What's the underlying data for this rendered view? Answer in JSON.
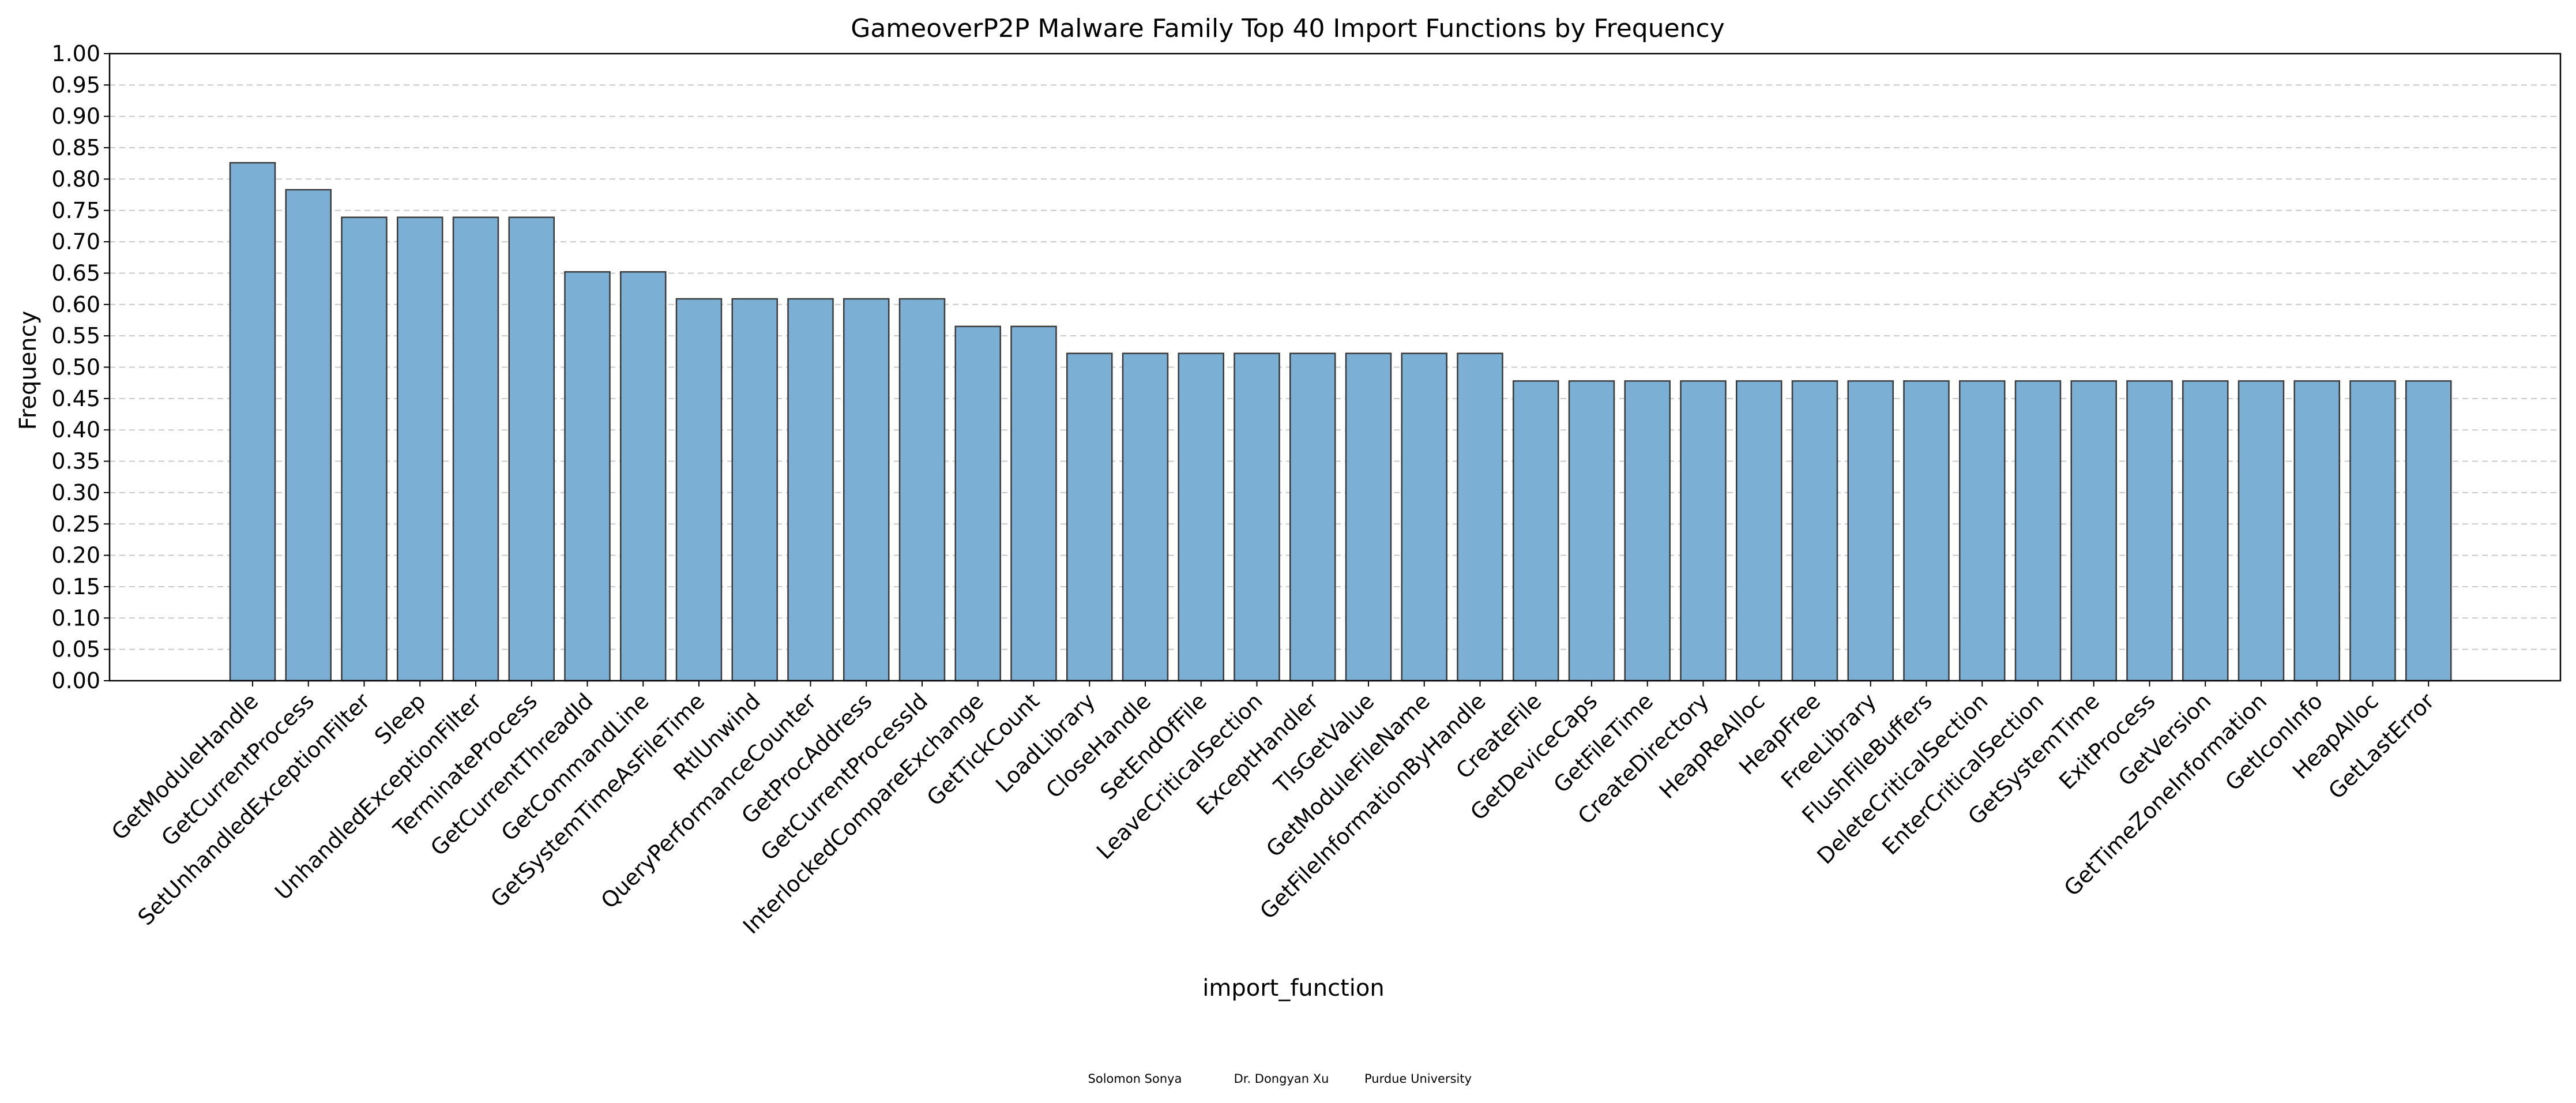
{
  "chart_data": {
    "type": "bar",
    "title": "GameoverP2P Malware Family Top 40 Import Functions by Frequency",
    "xlabel": "import_function",
    "ylabel": "Frequency",
    "ylim": [
      0,
      1.0
    ],
    "yticks": [
      "0.00",
      "0.05",
      "0.10",
      "0.15",
      "0.20",
      "0.25",
      "0.30",
      "0.35",
      "0.40",
      "0.45",
      "0.50",
      "0.55",
      "0.60",
      "0.65",
      "0.70",
      "0.75",
      "0.80",
      "0.85",
      "0.90",
      "0.95",
      "1.00"
    ],
    "grid": "y-dashed",
    "bar_color": "#7bafd4",
    "bar_edge_color": "#3a3a3a",
    "categories": [
      "GetModuleHandle",
      "GetCurrentProcess",
      "SetUnhandledExceptionFilter",
      "Sleep",
      "UnhandledExceptionFilter",
      "TerminateProcess",
      "GetCurrentThreadId",
      "GetCommandLine",
      "GetSystemTimeAsFileTime",
      "RtlUnwind",
      "QueryPerformanceCounter",
      "GetProcAddress",
      "GetCurrentProcessId",
      "InterlockedCompareExchange",
      "GetTickCount",
      "LoadLibrary",
      "CloseHandle",
      "SetEndOfFile",
      "LeaveCriticalSection",
      "ExceptHandler",
      "TlsGetValue",
      "GetModuleFileName",
      "GetFileInformationByHandle",
      "CreateFile",
      "GetDeviceCaps",
      "GetFileTime",
      "CreateDirectory",
      "HeapReAlloc",
      "HeapFree",
      "FreeLibrary",
      "FlushFileBuffers",
      "DeleteCriticalSection",
      "EnterCriticalSection",
      "GetSystemTime",
      "ExitProcess",
      "GetVersion",
      "GetTimeZoneInformation",
      "GetIconInfo",
      "HeapAlloc",
      "GetLastError"
    ],
    "values": [
      0.826,
      0.783,
      0.739,
      0.739,
      0.739,
      0.739,
      0.652,
      0.652,
      0.609,
      0.609,
      0.609,
      0.609,
      0.609,
      0.565,
      0.565,
      0.522,
      0.522,
      0.522,
      0.522,
      0.522,
      0.522,
      0.522,
      0.522,
      0.478,
      0.478,
      0.478,
      0.478,
      0.478,
      0.478,
      0.478,
      0.478,
      0.478,
      0.478,
      0.478,
      0.478,
      0.478,
      0.478,
      0.478,
      0.478,
      0.478
    ]
  },
  "footer": {
    "author1": "Solomon Sonya",
    "author2": "Dr. Dongyan Xu",
    "affiliation": "Purdue University"
  }
}
